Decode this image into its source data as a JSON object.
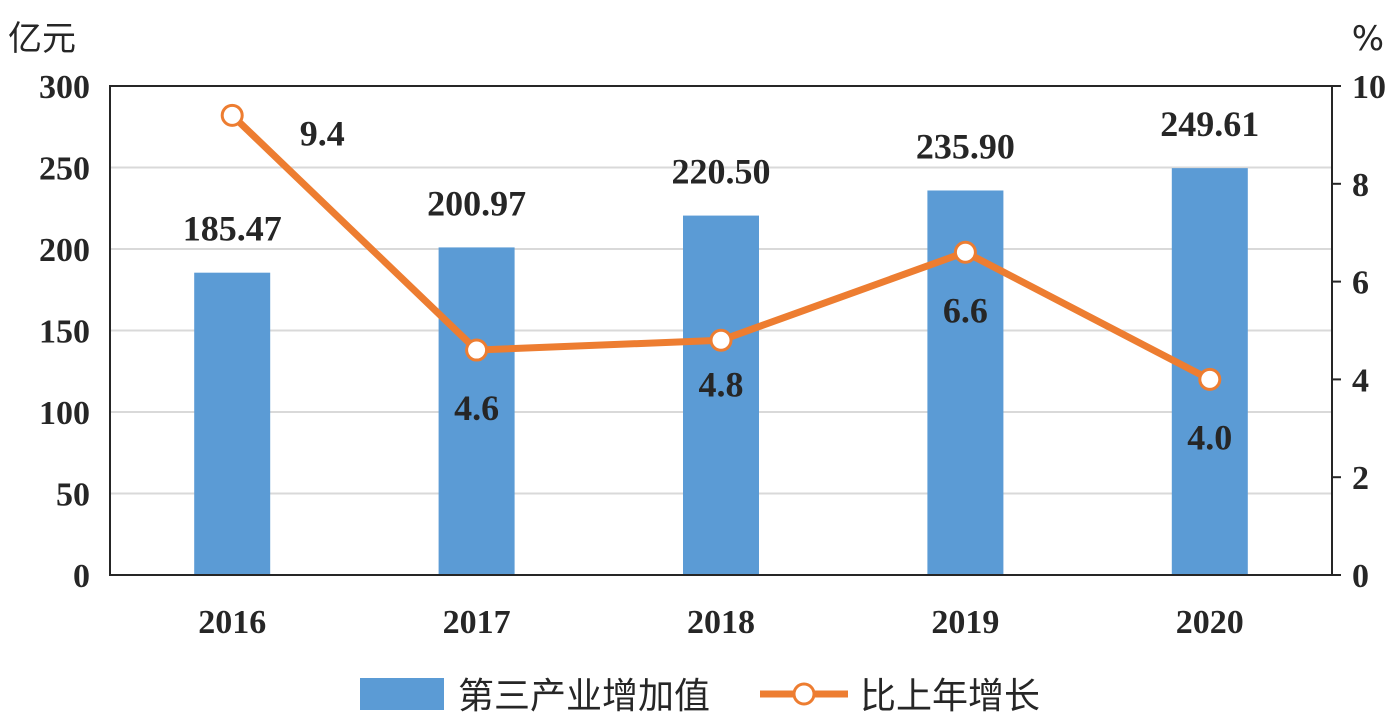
{
  "chart_data": {
    "type": "bar",
    "categories": [
      "2016",
      "2017",
      "2018",
      "2019",
      "2020"
    ],
    "series": [
      {
        "name": "第三产业增加值",
        "type": "bar",
        "axis": "left",
        "values": [
          185.47,
          200.97,
          220.5,
          235.9,
          249.61
        ],
        "labels": [
          "185.47",
          "200.97",
          "220.50",
          "235.90",
          "249.61"
        ],
        "color": "#5b9bd5"
      },
      {
        "name": "比上年增长",
        "type": "line",
        "axis": "right",
        "values": [
          9.4,
          4.6,
          4.8,
          6.6,
          4.0
        ],
        "labels": [
          "9.4",
          "4.6",
          "4.8",
          "6.6",
          "4.0"
        ],
        "color": "#ed7d31"
      }
    ],
    "y_left": {
      "unit": "亿元",
      "range": [
        0,
        300
      ],
      "ticks": [
        "0",
        "50",
        "100",
        "150",
        "200",
        "250",
        "300"
      ]
    },
    "y_right": {
      "unit": "%",
      "range": [
        0,
        10
      ],
      "ticks": [
        "0",
        "2",
        "4",
        "6",
        "8",
        "10"
      ]
    },
    "grid": true,
    "legend_position": "bottom"
  }
}
